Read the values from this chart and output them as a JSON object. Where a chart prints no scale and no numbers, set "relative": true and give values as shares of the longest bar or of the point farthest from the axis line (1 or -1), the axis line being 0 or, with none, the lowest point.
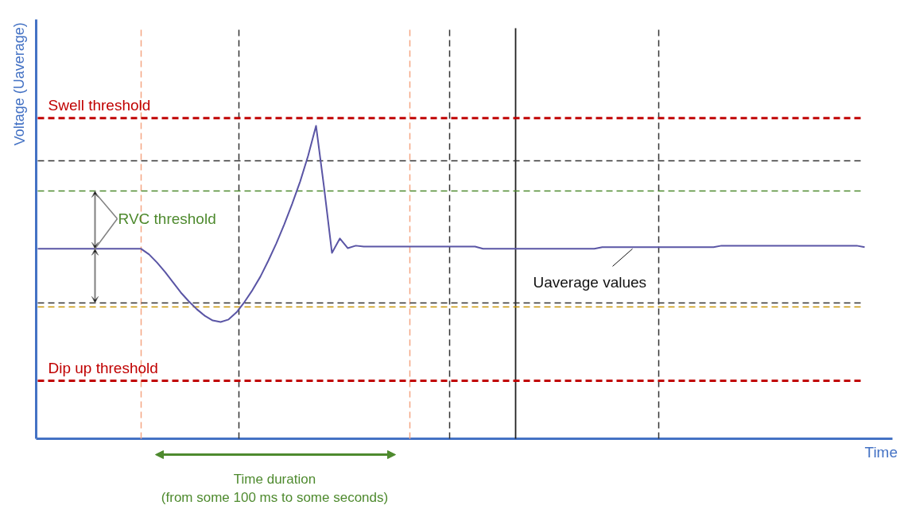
{
  "chart_data": {
    "type": "line",
    "relative": true,
    "xlabel": "Time",
    "ylabel": "Voltage (Uaverage)",
    "categories": [
      null,
      null,
      null,
      null,
      null,
      null,
      null,
      null,
      null,
      null,
      null,
      null,
      null,
      null,
      null,
      null,
      null,
      null,
      null,
      null,
      null,
      null,
      null,
      null,
      null,
      null,
      null,
      null,
      null,
      null,
      null,
      null,
      null,
      null,
      null,
      null,
      null,
      null,
      null,
      null,
      null,
      null,
      null,
      null,
      null,
      null,
      null,
      null,
      null,
      null,
      null,
      null,
      null,
      null,
      null,
      null,
      null,
      null,
      null,
      null,
      null,
      null,
      null,
      null,
      null,
      null,
      null,
      null,
      null,
      null,
      null,
      null,
      null,
      null,
      null,
      null,
      null,
      null,
      null,
      null,
      null,
      null,
      null,
      null,
      null,
      null,
      null,
      null,
      null,
      null,
      null,
      null,
      null,
      null,
      null,
      null,
      null,
      null,
      null,
      null,
      null,
      null,
      null,
      null,
      null
    ],
    "series": [
      {
        "color": "#5a55a5",
        "values": [
          0.607,
          0.607,
          0.607,
          0.607,
          0.607,
          0.607,
          0.607,
          0.607,
          0.607,
          0.607,
          0.607,
          0.607,
          0.607,
          0.607,
          0.589,
          0.563,
          0.533,
          0.5,
          0.467,
          0.439,
          0.414,
          0.393,
          0.378,
          0.373,
          0.381,
          0.404,
          0.437,
          0.475,
          0.518,
          0.569,
          0.624,
          0.685,
          0.751,
          0.822,
          0.904,
          1.0,
          0.805,
          0.594,
          0.64,
          0.609,
          0.617,
          0.614,
          0.614,
          0.614,
          0.614,
          0.614,
          0.614,
          0.614,
          0.614,
          0.614,
          0.614,
          0.614,
          0.614,
          0.614,
          0.614,
          0.614,
          0.607,
          0.607,
          0.607,
          0.607,
          0.607,
          0.607,
          0.607,
          0.607,
          0.607,
          0.607,
          0.607,
          0.607,
          0.607,
          0.607,
          0.607,
          0.612,
          0.612,
          0.612,
          0.612,
          0.612,
          0.612,
          0.612,
          0.612,
          0.612,
          0.612,
          0.612,
          0.612,
          0.612,
          0.612,
          0.612,
          0.617,
          0.617,
          0.617,
          0.617,
          0.617,
          0.617,
          0.617,
          0.617,
          0.617,
          0.617,
          0.617,
          0.617,
          0.617,
          0.617,
          0.617,
          0.617,
          0.617,
          0.617,
          0.612
        ]
      }
    ],
    "ref_lines": [
      {
        "axis": "y",
        "value": 1.025,
        "label": "Swell threshold",
        "color": "#c00000",
        "line_style": "dashed"
      },
      {
        "axis": "y",
        "value": 0.888,
        "color": "#333333",
        "line_style": "dashed"
      },
      {
        "axis": "y",
        "value": 0.792,
        "color": "#4e8a2e",
        "line_style": "dashed"
      },
      {
        "axis": "y",
        "value": 0.434,
        "color": "#333333",
        "line_style": "dashed"
      },
      {
        "axis": "y",
        "value": 0.421,
        "color": "#c8960a",
        "line_style": "dashed"
      },
      {
        "axis": "y",
        "value": 0.185,
        "label": "Dip up threshold",
        "color": "#c00000",
        "line_style": "dashed"
      }
    ],
    "annotations": [
      "RVC threshold",
      "Uaverage values",
      "Time duration\n(from some 100 ms to some seconds)"
    ]
  }
}
